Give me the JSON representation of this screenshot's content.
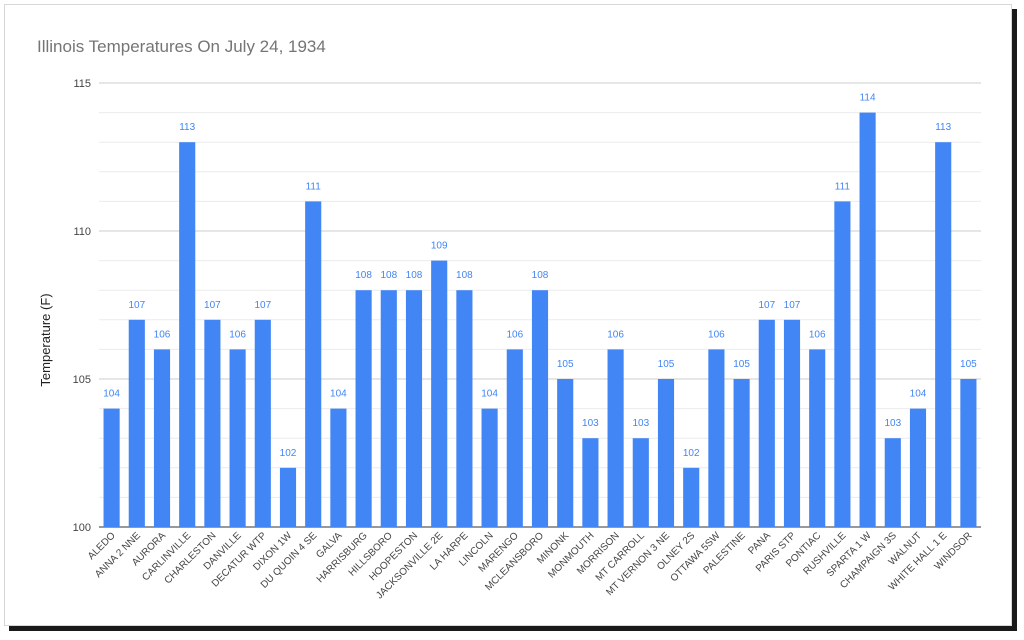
{
  "chart_data": {
    "type": "bar",
    "title": "Illinois Temperatures On July 24, 1934",
    "xlabel": "",
    "ylabel": "Temperature (F)",
    "ylim": [
      100,
      115
    ],
    "yticks": [
      100,
      105,
      110,
      115
    ],
    "grid": true,
    "legend": "none",
    "bar_color": "#4285f4",
    "label_color": "#4285f4",
    "categories": [
      "ALEDO",
      "ANNA 2 NNE",
      "AURORA",
      "CARLINVILLE",
      "CHARLESTON",
      "DANVILLE",
      "DECATUR WTP",
      "DIXON 1W",
      "DU QUOIN 4 SE",
      "GALVA",
      "HARRISBURG",
      "HILLSBORO",
      "HOOPESTON",
      "JACKSONVILLE 2E",
      "LA HARPE",
      "LINCOLN",
      "MARENGO",
      "MCLEANSBORO",
      "MINONK",
      "MONMOUTH",
      "MORRISON",
      "MT CARROLL",
      "MT VERNON 3 NE",
      "OLNEY 2S",
      "OTTAWA 5SW",
      "PALESTINE",
      "PANA",
      "PARIS STP",
      "PONTIAC",
      "RUSHVILLE",
      "SPARTA 1 W",
      "CHAMPAIGN 3S",
      "WALNUT",
      "WHITE HALL 1 E",
      "WINDSOR"
    ],
    "values": [
      104,
      107,
      106,
      113,
      107,
      106,
      107,
      102,
      111,
      104,
      108,
      108,
      108,
      109,
      108,
      104,
      106,
      108,
      105,
      103,
      106,
      103,
      105,
      102,
      106,
      105,
      107,
      107,
      106,
      111,
      114,
      103,
      104,
      113,
      105
    ]
  }
}
